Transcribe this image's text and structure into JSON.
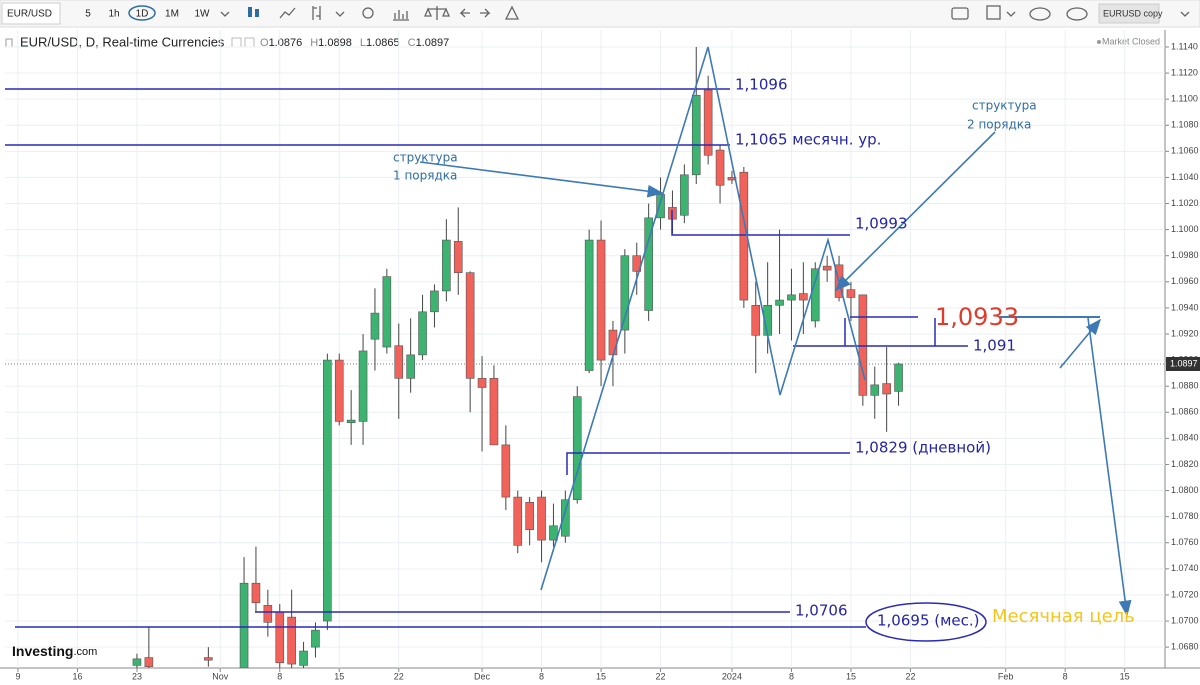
{
  "toolbar": {
    "symbol": "EUR/USD",
    "intervals": [
      "5",
      "1h",
      "1D",
      "1M",
      "1W"
    ],
    "layout": "EURUSD copy"
  },
  "header": {
    "title": "EUR/USD, D, Real-time Currencies",
    "ohlc": [
      {
        "key": "O",
        "value": 1.0876
      },
      {
        "key": "H",
        "value": 1.0898
      },
      {
        "key": "L",
        "value": 1.0865
      },
      {
        "key": "C",
        "value": 1.0897
      }
    ],
    "status": "Market Closed"
  },
  "logo": [
    "Investing",
    ".com"
  ],
  "annotations": {
    "levels": [
      "1,1096",
      "1,1065 месячн. ур.",
      "1,0993",
      "1,091",
      "1,0933",
      "1,0829 (дневной)",
      "1,0706",
      "1,0695 (мес.)"
    ],
    "structure_1": [
      "структура",
      "1 порядка"
    ],
    "structure_2": [
      "структура",
      "2 порядка"
    ],
    "target": "Месячная цель"
  },
  "chart_data": {
    "type": "candlestick",
    "up_color": "#3cb371",
    "down_color": "#f0625a",
    "grid": true,
    "last_price": 1.0897,
    "categories": [
      "9",
      null,
      null,
      null,
      null,
      "16",
      null,
      null,
      null,
      null,
      "23",
      null,
      null,
      null,
      null,
      null,
      null,
      "Nov",
      null,
      null,
      null,
      null,
      "8",
      null,
      null,
      null,
      null,
      "15",
      null,
      null,
      null,
      null,
      "22",
      null,
      null,
      null,
      null,
      null,
      null,
      "Dec",
      null,
      null,
      null,
      null,
      "8",
      null,
      null,
      null,
      null,
      "15",
      null,
      null,
      null,
      null,
      "22",
      null,
      null,
      null,
      null,
      null,
      "2024",
      null,
      null,
      null,
      null,
      "8",
      null,
      null,
      null,
      null,
      "15",
      null,
      null,
      null,
      null,
      "22",
      null,
      null,
      null,
      null,
      null,
      null,
      null,
      "Feb",
      null,
      null,
      null,
      null,
      "8",
      null,
      null,
      null,
      null,
      "15",
      null,
      null,
      null
    ],
    "open": [
      null,
      null,
      null,
      null,
      null,
      null,
      null,
      null,
      null,
      null,
      1.0666,
      1.0672,
      null,
      null,
      null,
      null,
      1.0672,
      null,
      null,
      1.0664,
      1.0729,
      1.0712,
      1.0707,
      1.0703,
      1.0666,
      1.068,
      1.07,
      1.09,
      1.0852,
      1.0853,
      1.0916,
      1.091,
      1.0911,
      1.0886,
      1.0904,
      1.0937,
      1.0953,
      1.0991,
      1.0967,
      1.0886,
      1.0886,
      1.0835,
      1.0795,
      1.0791,
      1.0795,
      1.0762,
      1.0765,
      1.0793,
      1.0892,
      1.0992,
      1.0923,
      1.0923,
      1.098,
      1.0938,
      1.1009,
      1.1017,
      1.1011,
      1.1042,
      1.1107,
      1.1061,
      1.104,
      1.1044,
      1.0942,
      1.0919,
      1.0942,
      1.0946,
      1.0951,
      1.093,
      1.0972,
      1.0973,
      1.0954,
      1.095,
      1.0873,
      1.0882,
      1.0876,
      null,
      null,
      null,
      null,
      null,
      null,
      null,
      null,
      null,
      null,
      null,
      null,
      null,
      null,
      null,
      null,
      null,
      null,
      null,
      null,
      null,
      null
    ],
    "high": [
      null,
      null,
      null,
      null,
      null,
      null,
      null,
      null,
      null,
      null,
      1.0675,
      1.0695,
      null,
      null,
      null,
      null,
      1.068,
      null,
      null,
      1.0749,
      1.0757,
      1.0724,
      1.0713,
      1.0724,
      1.0684,
      1.0699,
      1.0905,
      1.0905,
      1.0877,
      1.092,
      1.0955,
      1.097,
      1.0928,
      1.0932,
      1.095,
      1.0958,
      1.1008,
      1.1017,
      1.0968,
      1.0903,
      1.0896,
      1.085,
      1.08,
      1.0795,
      1.08,
      1.079,
      1.08,
      1.088,
      1.1,
      1.1007,
      1.093,
      1.0985,
      1.099,
      1.102,
      1.104,
      1.103,
      1.105,
      1.114,
      1.1118,
      1.1065,
      1.1045,
      1.1048,
      1.096,
      1.0975,
      1.1,
      1.097,
      1.0975,
      1.0975,
      1.098,
      1.098,
      1.096,
      1.095,
      1.0895,
      1.091,
      1.0898,
      null,
      null,
      null,
      null,
      null,
      null,
      null,
      null,
      null,
      null,
      null,
      null,
      null,
      null,
      null,
      null,
      null,
      null,
      null,
      null,
      null,
      null
    ],
    "low": [
      null,
      null,
      null,
      null,
      null,
      null,
      null,
      null,
      null,
      null,
      1.066,
      1.066,
      null,
      null,
      null,
      null,
      1.0665,
      null,
      null,
      1.0655,
      1.0707,
      1.0688,
      1.066,
      1.0662,
      1.066,
      1.0672,
      1.0693,
      1.085,
      1.0835,
      1.0835,
      1.0892,
      1.0905,
      1.0855,
      1.0875,
      1.09,
      1.0925,
      1.0945,
      1.095,
      1.086,
      1.083,
      1.0835,
      1.0785,
      1.0752,
      1.0758,
      1.0745,
      1.0757,
      1.076,
      1.079,
      1.089,
      1.088,
      1.088,
      1.0905,
      1.095,
      1.093,
      1.1,
      1.0997,
      1.1005,
      1.1035,
      1.105,
      1.102,
      1.1035,
      1.094,
      1.089,
      1.0905,
      1.092,
      1.0915,
      1.092,
      1.0925,
      1.096,
      1.0945,
      1.093,
      1.0865,
      1.0855,
      1.0845,
      1.0865,
      null,
      null,
      null,
      null,
      null,
      null,
      null,
      null,
      null,
      null,
      null,
      null,
      null,
      null,
      null,
      null,
      null,
      null,
      null,
      null,
      null,
      null
    ],
    "close": [
      null,
      null,
      null,
      null,
      null,
      null,
      null,
      null,
      null,
      null,
      1.0671,
      1.0665,
      null,
      null,
      null,
      null,
      1.067,
      null,
      null,
      1.0729,
      1.0714,
      1.0699,
      1.0668,
      1.0667,
      1.0677,
      1.0693,
      1.09,
      1.0853,
      1.0854,
      1.0907,
      1.0936,
      1.0964,
      1.0886,
      1.0904,
      1.0937,
      1.0953,
      1.0992,
      1.0967,
      1.0886,
      1.0879,
      1.0835,
      1.0795,
      1.0758,
      1.077,
      1.0762,
      1.0773,
      1.0793,
      1.0872,
      1.0992,
      1.09,
      1.0904,
      1.098,
      1.0968,
      1.1009,
      1.1027,
      1.1008,
      1.1042,
      1.1103,
      1.1057,
      1.1034,
      1.1038,
      1.0946,
      1.0919,
      1.0942,
      1.0946,
      1.095,
      1.0946,
      1.097,
      1.0969,
      1.0948,
      1.0948,
      1.0873,
      1.0881,
      1.0874,
      1.0897,
      null,
      null,
      null,
      null,
      null,
      null,
      null,
      null,
      null,
      null,
      null,
      null,
      null,
      null,
      null,
      null,
      null,
      null,
      null,
      null,
      null,
      null
    ],
    "ylim": [
      1.0664,
      1.1153
    ],
    "yticks": [
      {
        "value": 1.068,
        "label": "1.0680"
      },
      {
        "value": 1.07,
        "label": "1.0700"
      },
      {
        "value": 1.072,
        "label": "1.0720"
      },
      {
        "value": 1.074,
        "label": "1.0740"
      },
      {
        "value": 1.076,
        "label": "1.0760"
      },
      {
        "value": 1.078,
        "label": "1.0780"
      },
      {
        "value": 1.08,
        "label": "1.0800"
      },
      {
        "value": 1.082,
        "label": "1.0820"
      },
      {
        "value": 1.084,
        "label": "1.0840"
      },
      {
        "value": 1.086,
        "label": "1.0860"
      },
      {
        "value": 1.088,
        "label": "1.0880"
      },
      {
        "value": 1.09,
        "label": "1.0900"
      },
      {
        "value": 1.092,
        "label": "1.0920"
      },
      {
        "value": 1.094,
        "label": "1.0940"
      },
      {
        "value": 1.096,
        "label": "1.0960"
      },
      {
        "value": 1.098,
        "label": "1.0980"
      },
      {
        "value": 1.1,
        "label": "1.1000"
      },
      {
        "value": 1.102,
        "label": "1.1020"
      },
      {
        "value": 1.104,
        "label": "1.1040"
      },
      {
        "value": 1.106,
        "label": "1.1060"
      },
      {
        "value": 1.108,
        "label": "1.1080"
      },
      {
        "value": 1.11,
        "label": "1.1100"
      },
      {
        "value": 1.112,
        "label": "1.1120"
      },
      {
        "value": 1.114,
        "label": "1.1140"
      }
    ]
  }
}
